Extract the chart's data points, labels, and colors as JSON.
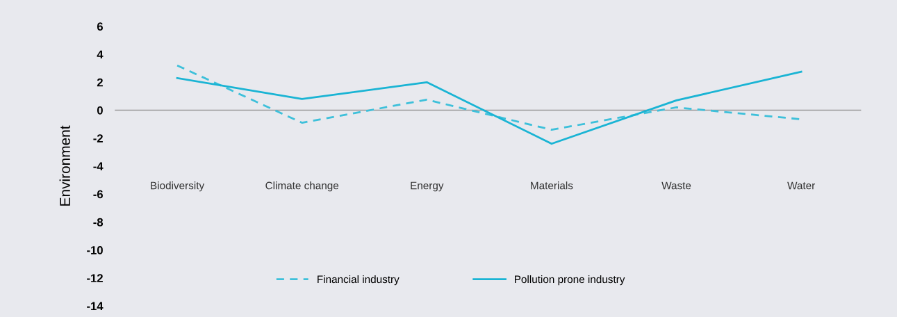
{
  "chart_data": {
    "type": "line",
    "ylabel": "Environment",
    "categories": [
      "Biodiversity",
      "Climate change",
      "Energy",
      "Materials",
      "Waste",
      "Water"
    ],
    "series": [
      {
        "name": "Financial industry",
        "color": "#3ec0da",
        "line_style": "dashed",
        "values": [
          3.2,
          -0.9,
          0.75,
          -1.4,
          0.2,
          -0.65
        ]
      },
      {
        "name": "Pollution prone industry",
        "color": "#1ab4d4",
        "line_style": "solid",
        "values": [
          2.3,
          0.8,
          2.0,
          -2.4,
          0.7,
          2.75
        ]
      }
    ],
    "ylim": [
      -14,
      6
    ],
    "yticks": [
      -14,
      -12,
      -10,
      -8,
      -6,
      -4,
      -2,
      0,
      2,
      4,
      6
    ],
    "ref_lines": [
      {
        "axis": "y",
        "value": 0,
        "color": "#999999"
      }
    ],
    "grid": false,
    "legend": "bottom",
    "marker": "none"
  }
}
